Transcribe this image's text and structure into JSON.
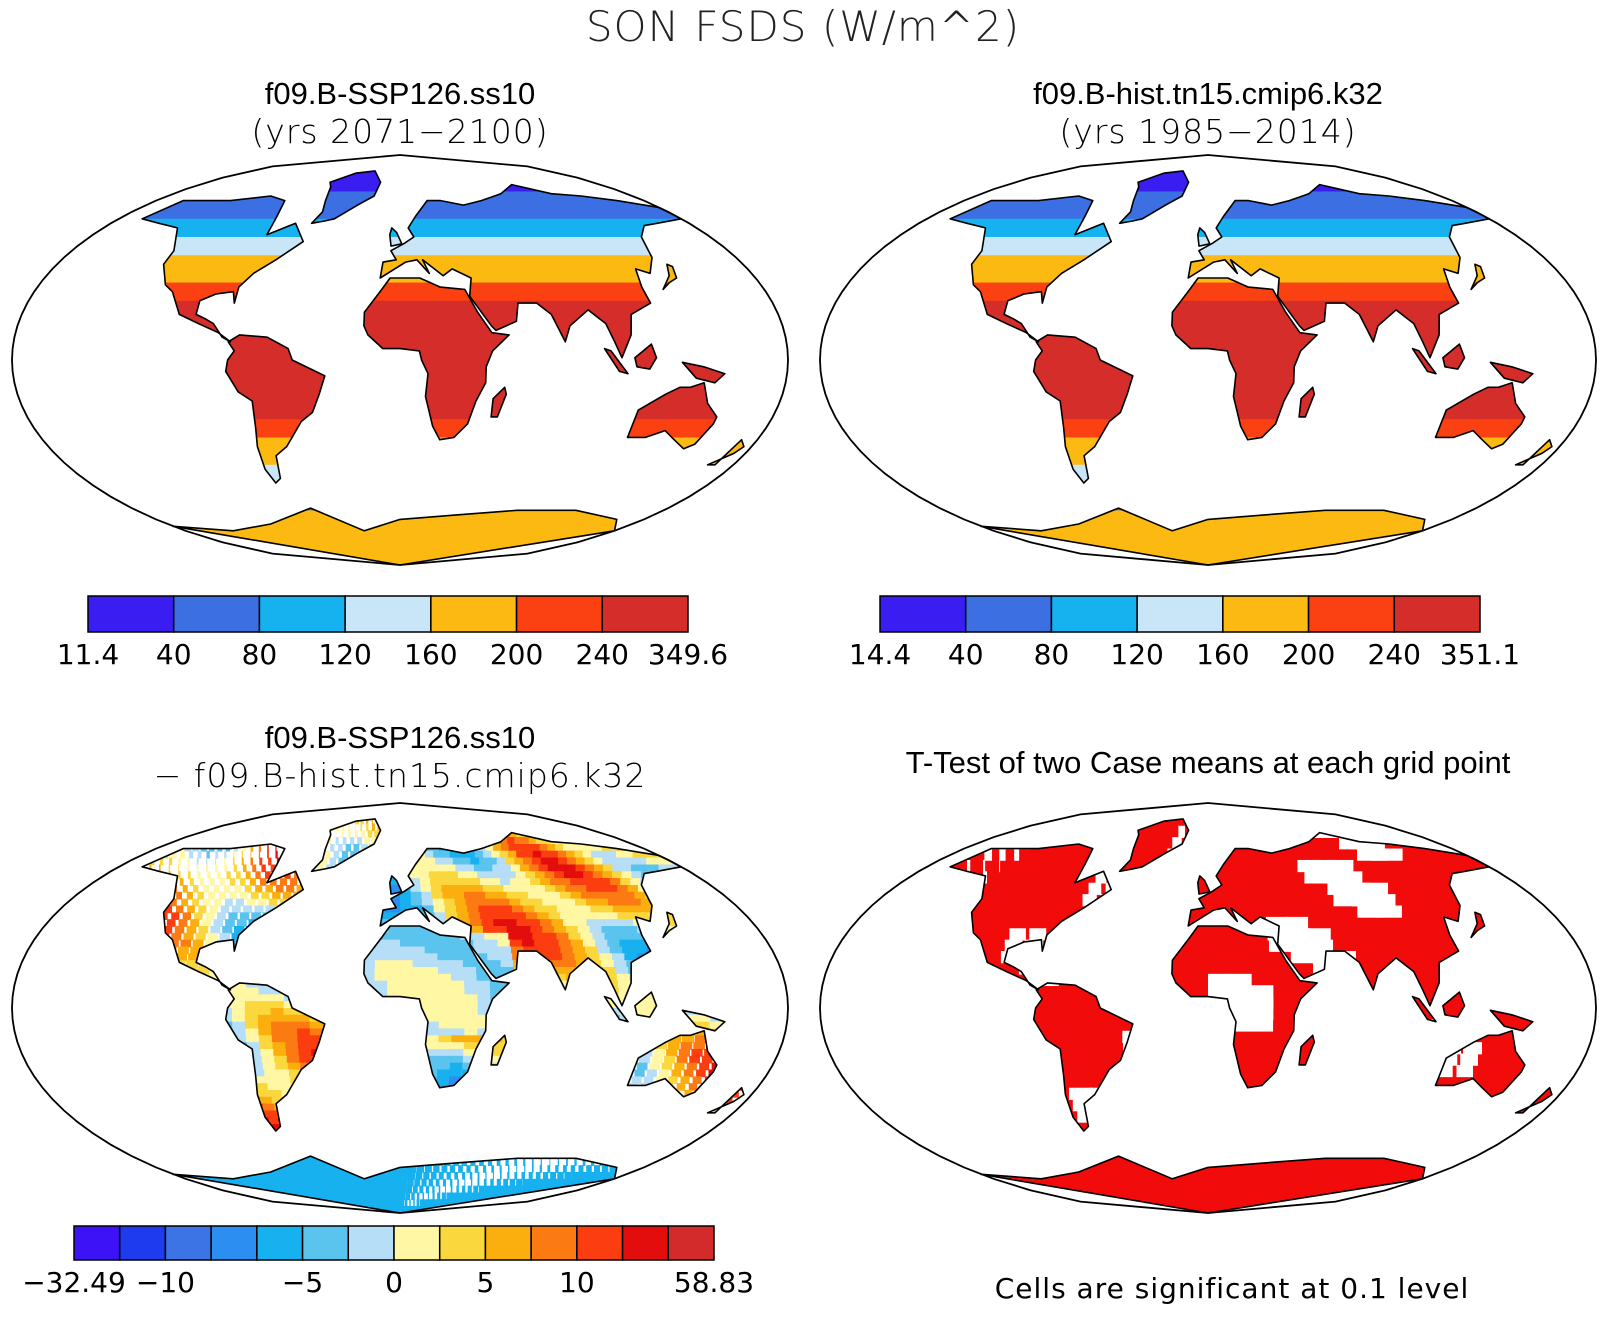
{
  "title": "SON FSDS (W/m^2)",
  "panels": [
    {
      "title": "f09.B-SSP126.ss10",
      "subtitle": "(yrs 2071−2100)",
      "kind": "abs"
    },
    {
      "title": "f09.B-hist.tn15.cmip6.k32",
      "subtitle": "(yrs 1985−2014)",
      "kind": "abs"
    },
    {
      "title": "f09.B-SSP126.ss10",
      "subtitle": "− f09.B-hist.tn15.cmip6.k32",
      "kind": "diff"
    },
    {
      "title": "T-Test of two Case means at each grid point",
      "subtitle": "",
      "kind": "ttest"
    }
  ],
  "colorbars": [
    {
      "labels": [
        "11.4",
        "40",
        "80",
        "120",
        "160",
        "200",
        "240",
        "349.6"
      ],
      "colors": [
        "#3a1df0",
        "#3c6fe2",
        "#16b1ef",
        "#c8e6f7",
        "#fbb911",
        "#fb4112",
        "#d42d2a"
      ]
    },
    {
      "labels": [
        "14.4",
        "40",
        "80",
        "120",
        "160",
        "200",
        "240",
        "351.1"
      ],
      "colors": [
        "#3a1df0",
        "#3c6fe2",
        "#16b1ef",
        "#c8e6f7",
        "#fbb911",
        "#fb4112",
        "#d42d2a"
      ]
    },
    {
      "labels": [
        "−32.49",
        "−10",
        "−5",
        "0",
        "5",
        "10",
        "58.83"
      ],
      "colors": [
        "#3d12f6",
        "#1e3ced",
        "#3d74e5",
        "#2c8ef0",
        "#17b1ef",
        "#5ac3ee",
        "#b7def7",
        "#fff7a3",
        "#fbd73e",
        "#fbaf0f",
        "#fb7a12",
        "#fc3d0f",
        "#e30d0d",
        "#d32b2b"
      ]
    }
  ],
  "ttest_note": "Cells are significant at 0.1 level",
  "ttest_color": "#f20b0b"
}
